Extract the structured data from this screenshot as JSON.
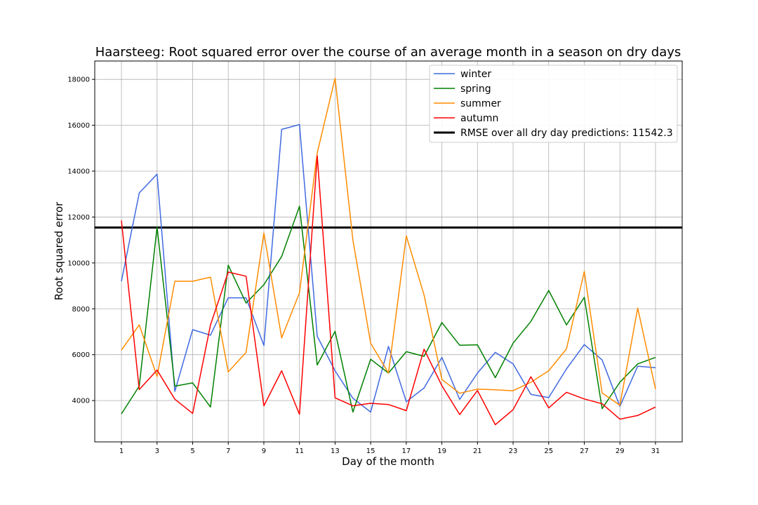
{
  "chart_data": {
    "type": "line",
    "title": "Haarsteeg: Root squared error over the course of an average month in a season on dry days",
    "xlabel": "Day of the month",
    "ylabel": "Root squared error",
    "xlim": [
      -0.5,
      32.5
    ],
    "ylim": [
      2200,
      18800
    ],
    "grid": true,
    "legend_position": "top-right",
    "xticks": [
      1,
      3,
      5,
      7,
      9,
      11,
      13,
      15,
      17,
      19,
      21,
      23,
      25,
      27,
      29,
      31
    ],
    "yticks": [
      4000,
      6000,
      8000,
      10000,
      12000,
      14000,
      16000,
      18000
    ],
    "x": [
      1,
      2,
      3,
      4,
      5,
      6,
      7,
      8,
      9,
      10,
      11,
      12,
      13,
      14,
      15,
      16,
      17,
      18,
      19,
      20,
      21,
      22,
      23,
      24,
      25,
      26,
      27,
      28,
      29,
      30,
      31
    ],
    "series": [
      {
        "name": "winter",
        "color": "#4169e1",
        "values": [
          9200,
          13050,
          13870,
          4400,
          7090,
          6850,
          8480,
          8480,
          6400,
          15820,
          16030,
          6800,
          5300,
          4100,
          3500,
          6360,
          3950,
          4550,
          5880,
          4050,
          5200,
          6100,
          5600,
          4270,
          4130,
          5380,
          6440,
          5770,
          3750,
          5500,
          5430
        ]
      },
      {
        "name": "spring",
        "color": "#008000",
        "values": [
          3420,
          4630,
          11560,
          4630,
          4770,
          3720,
          9900,
          8250,
          9050,
          10280,
          12470,
          5550,
          7020,
          3500,
          5800,
          5200,
          6130,
          5930,
          7400,
          6410,
          6430,
          5000,
          6500,
          7450,
          8800,
          7300,
          8500,
          3650,
          4800,
          5600,
          5880
        ]
      },
      {
        "name": "summer",
        "color": "#ff8c00",
        "values": [
          6200,
          7300,
          5050,
          9200,
          9200,
          9380,
          5250,
          6100,
          11300,
          6730,
          8700,
          14800,
          18050,
          11000,
          6500,
          5200,
          11180,
          8600,
          4920,
          4320,
          4500,
          4470,
          4430,
          4800,
          5300,
          6250,
          9630,
          4330,
          3800,
          8030,
          4500
        ]
      },
      {
        "name": "autumn",
        "color": "#ff0000",
        "values": [
          11850,
          4480,
          5330,
          4060,
          3440,
          7300,
          9600,
          9420,
          3770,
          5300,
          3400,
          14670,
          4120,
          3770,
          3880,
          3830,
          3560,
          6240,
          4650,
          3390,
          4440,
          2950,
          3600,
          5040,
          3680,
          4360,
          4070,
          3860,
          3190,
          3350,
          3720
        ]
      }
    ],
    "reference_line": {
      "name": "RMSE over all dry day predictions: 11542.3",
      "value": 11542.3,
      "color": "#000000"
    }
  }
}
